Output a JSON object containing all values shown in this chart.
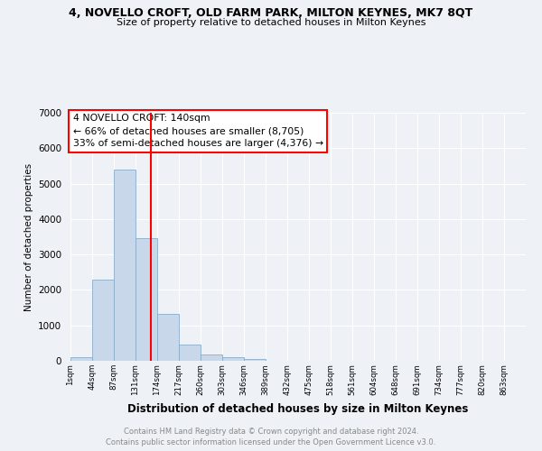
{
  "title1": "4, NOVELLO CROFT, OLD FARM PARK, MILTON KEYNES, MK7 8QT",
  "title2": "Size of property relative to detached houses in Milton Keynes",
  "xlabel": "Distribution of detached houses by size in Milton Keynes",
  "ylabel": "Number of detached properties",
  "bar_heights": [
    100,
    2300,
    5400,
    3450,
    1320,
    460,
    185,
    100,
    50,
    0,
    0,
    0,
    0,
    0,
    0,
    0,
    0,
    0,
    0,
    0,
    0
  ],
  "tick_labels": [
    "1sqm",
    "44sqm",
    "87sqm",
    "131sqm",
    "174sqm",
    "217sqm",
    "260sqm",
    "303sqm",
    "346sqm",
    "389sqm",
    "432sqm",
    "475sqm",
    "518sqm",
    "561sqm",
    "604sqm",
    "648sqm",
    "691sqm",
    "734sqm",
    "777sqm",
    "820sqm",
    "863sqm"
  ],
  "ylim": [
    0,
    7000
  ],
  "yticks": [
    0,
    1000,
    2000,
    3000,
    4000,
    5000,
    6000,
    7000
  ],
  "red_line_x": 3.2,
  "annotation_title": "4 NOVELLO CROFT: 140sqm",
  "annotation_line1": "← 66% of detached houses are smaller (8,705)",
  "annotation_line2": "33% of semi-detached houses are larger (4,376) →",
  "bar_color": "#c8d8ea",
  "bar_edge_color": "#8aacc8",
  "bg_color": "#eef2f7",
  "plot_bg_color": "#eef2f7",
  "grid_color": "#ffffff",
  "footer_line1": "Contains HM Land Registry data © Crown copyright and database right 2024.",
  "footer_line2": "Contains public sector information licensed under the Open Government Licence v3.0."
}
